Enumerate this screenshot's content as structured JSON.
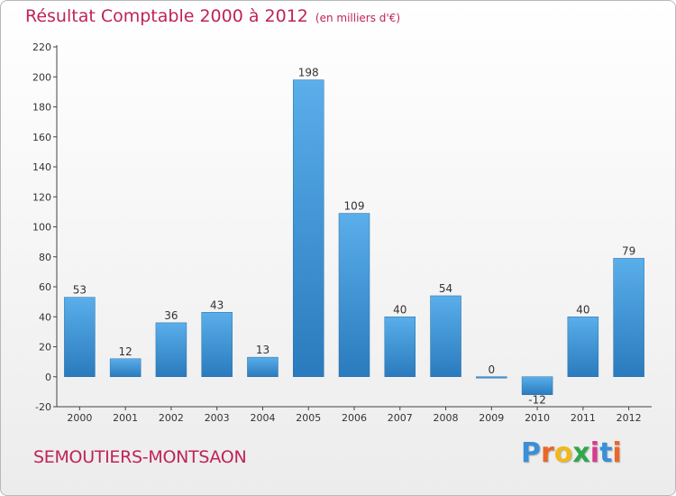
{
  "title": "Résultat Comptable 2000 à 2012",
  "subtitle": "(en milliers d'€)",
  "commune": "SEMOUTIERS-MONTSAON",
  "logo": {
    "letters": [
      "P",
      "r",
      "o",
      "x",
      "i",
      "t",
      "i"
    ],
    "colors": [
      "#3a8fd8",
      "#e8682a",
      "#f0b81c",
      "#2ea84a",
      "#d83a8c",
      "#3a8fd8",
      "#e8682a"
    ]
  },
  "colors": {
    "title": "#c0225a",
    "bar_light": "#5aaeea",
    "bar_dark": "#2a7bbd"
  },
  "chart_data": {
    "type": "bar",
    "title": "Résultat Comptable 2000 à 2012",
    "subtitle": "(en milliers d'€)",
    "xlabel": "",
    "ylabel": "",
    "categories": [
      "2000",
      "2001",
      "2002",
      "2003",
      "2004",
      "2005",
      "2006",
      "2007",
      "2008",
      "2009",
      "2010",
      "2011",
      "2012"
    ],
    "values": [
      53,
      12,
      36,
      43,
      13,
      198,
      109,
      40,
      54,
      0,
      -12,
      40,
      79
    ],
    "ylim": [
      -20,
      220
    ],
    "yticks": [
      -20,
      0,
      20,
      40,
      60,
      80,
      100,
      120,
      140,
      160,
      180,
      200,
      220
    ],
    "grid": false
  }
}
